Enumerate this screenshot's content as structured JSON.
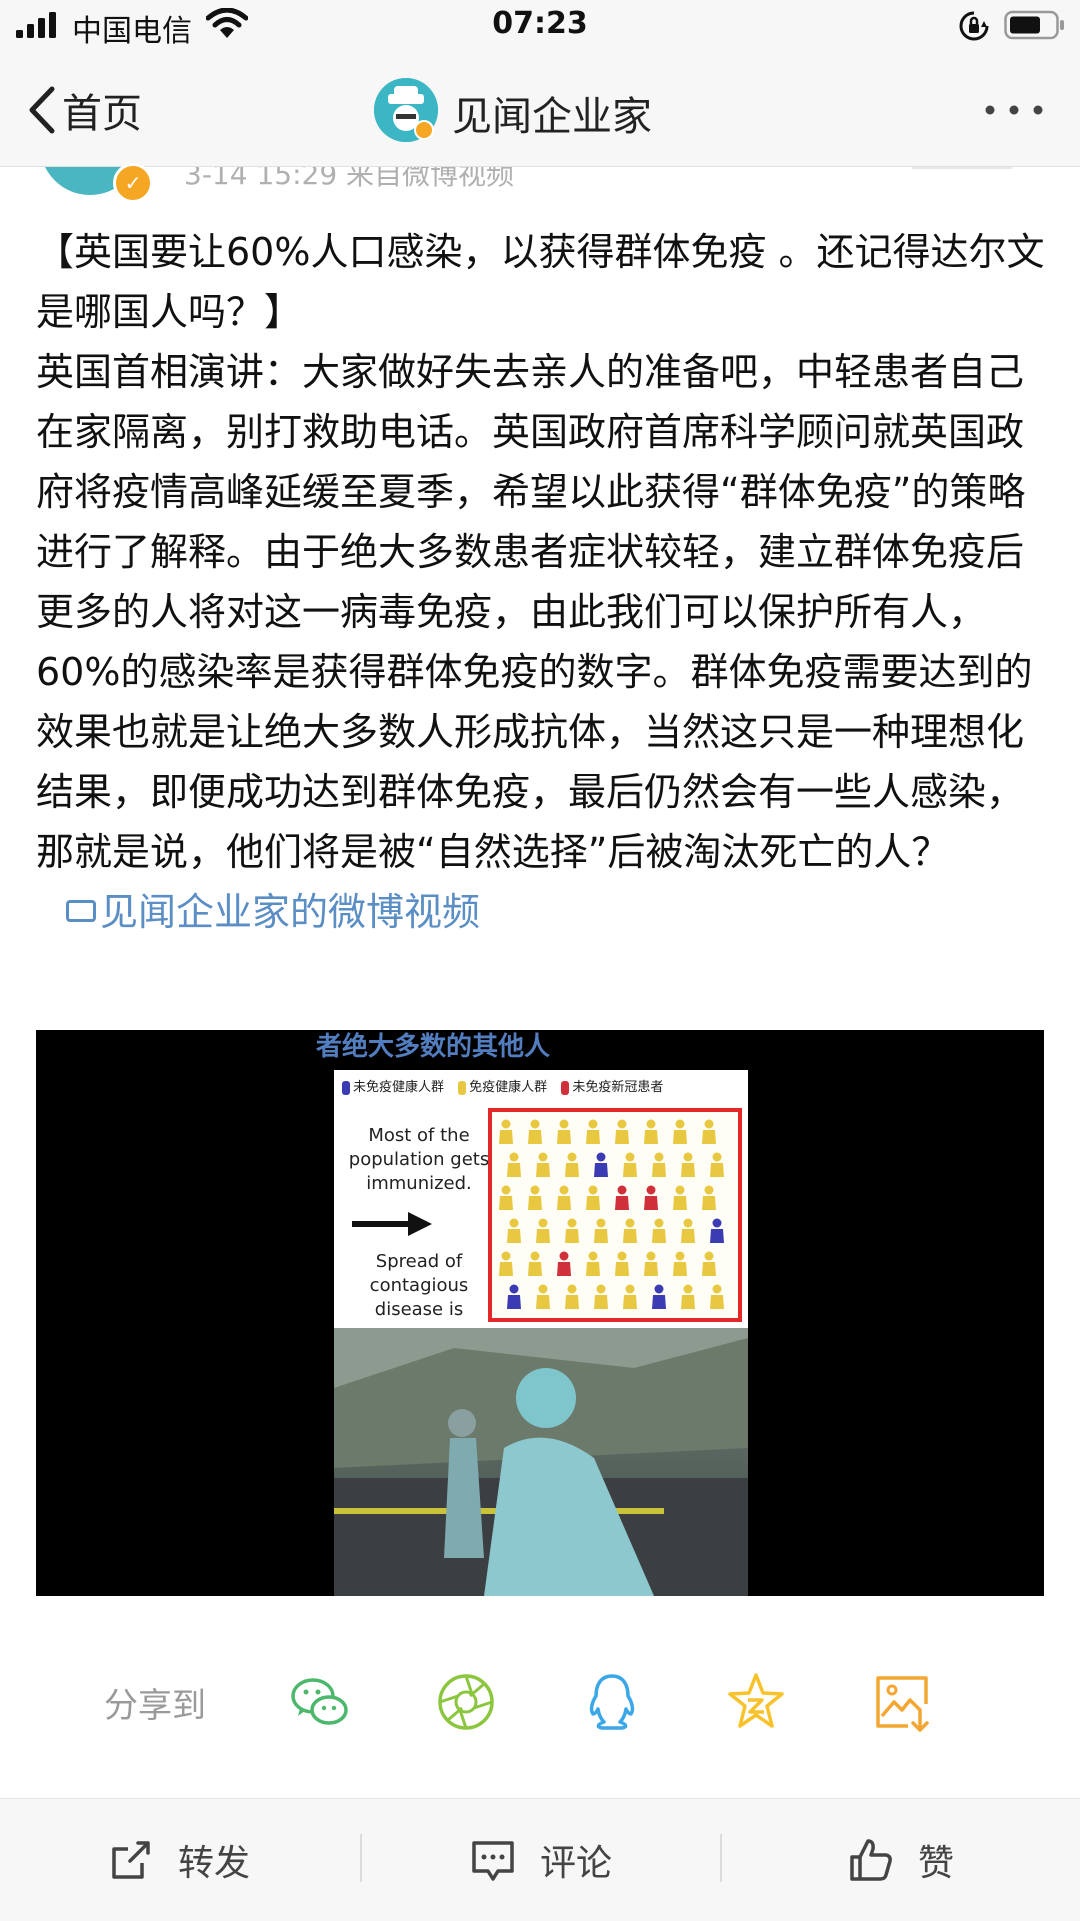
{
  "status_bar": {
    "carrier": "中国电信",
    "time": "07:23"
  },
  "nav": {
    "back_label": "首页",
    "title": "见闻企业家"
  },
  "post": {
    "meta": "3-14 15:29  来自微博视频",
    "paragraph_title": "【英国要让60%人口感染，以获得群体免疫 。还记得达尔文是哪国人吗？】",
    "paragraph_body": "英国首相演讲：大家做好失去亲人的准备吧，中轻患者自己在家隔离，别打救助电话。英国政府首席科学顾问就英国政府将疫情高峰延缓至夏季，希望以此获得“群体免疫”的策略进行了解释。由于绝大多数患者症状较轻，建立群体免疫后更多的人将对这一病毒免疫，由此我们可以保护所有人，60%的感染率是获得群体免疫的数字。群体免疫需要达到的效果也就是让绝大多数人形成抗体，当然这只是一种理想化结果，即便成功达到群体免疫，最后仍然会有一些人感染，那就是说，他们将是被“自然选择”后被淘汰死亡的人？",
    "video_link": "见闻企业家的微博视频"
  },
  "video": {
    "caption_top": "者绝大多数的其他人",
    "legend": [
      "未免疫健康人群",
      "免疫健康人群",
      "未免疫新冠患者"
    ],
    "text_1": "Most of the population gets immunized.",
    "text_2": "Spread of contagious disease is"
  },
  "share": {
    "label": "分享到",
    "targets": [
      "wechat-icon",
      "moments-icon",
      "qq-icon",
      "qzone-icon",
      "save-image-icon"
    ]
  },
  "actions": {
    "repost": "转发",
    "comment": "评论",
    "like": "赞"
  },
  "colors": {
    "link": "#5b8ec4",
    "wechat": "#4cb86c",
    "moments": "#8cc63f",
    "qq": "#3ba7e8",
    "qzone": "#f8c22c",
    "save": "#f4a633",
    "verified": "#f5a623"
  }
}
